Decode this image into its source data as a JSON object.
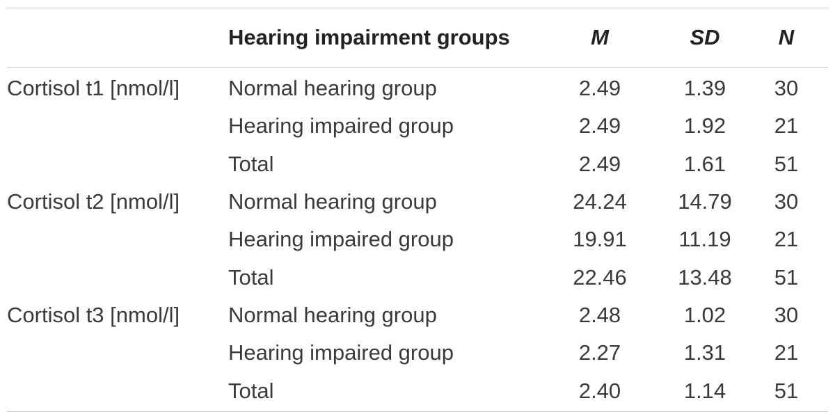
{
  "table": {
    "headers": {
      "measure": "",
      "group": "Hearing impairment groups",
      "m": "M",
      "sd": "SD",
      "n": "N"
    },
    "rows": [
      {
        "measure": "Cortisol t1 [nmol/l]",
        "group": "Normal hearing group",
        "m": "2.49",
        "sd": "1.39",
        "n": "30"
      },
      {
        "measure": "",
        "group": "Hearing impaired group",
        "m": "2.49",
        "sd": "1.92",
        "n": "21"
      },
      {
        "measure": "",
        "group": "Total",
        "m": "2.49",
        "sd": "1.61",
        "n": "51"
      },
      {
        "measure": "Cortisol t2 [nmol/l]",
        "group": "Normal hearing group",
        "m": "24.24",
        "sd": "14.79",
        "n": "30"
      },
      {
        "measure": "",
        "group": "Hearing impaired group",
        "m": "19.91",
        "sd": "11.19",
        "n": "21"
      },
      {
        "measure": "",
        "group": "Total",
        "m": "22.46",
        "sd": "13.48",
        "n": "51"
      },
      {
        "measure": "Cortisol t3 [nmol/l]",
        "group": "Normal hearing group",
        "m": "2.48",
        "sd": "1.02",
        "n": "30"
      },
      {
        "measure": "",
        "group": "Hearing impaired group",
        "m": "2.27",
        "sd": "1.31",
        "n": "21"
      },
      {
        "measure": "",
        "group": "Total",
        "m": "2.40",
        "sd": "1.14",
        "n": "51"
      }
    ]
  }
}
